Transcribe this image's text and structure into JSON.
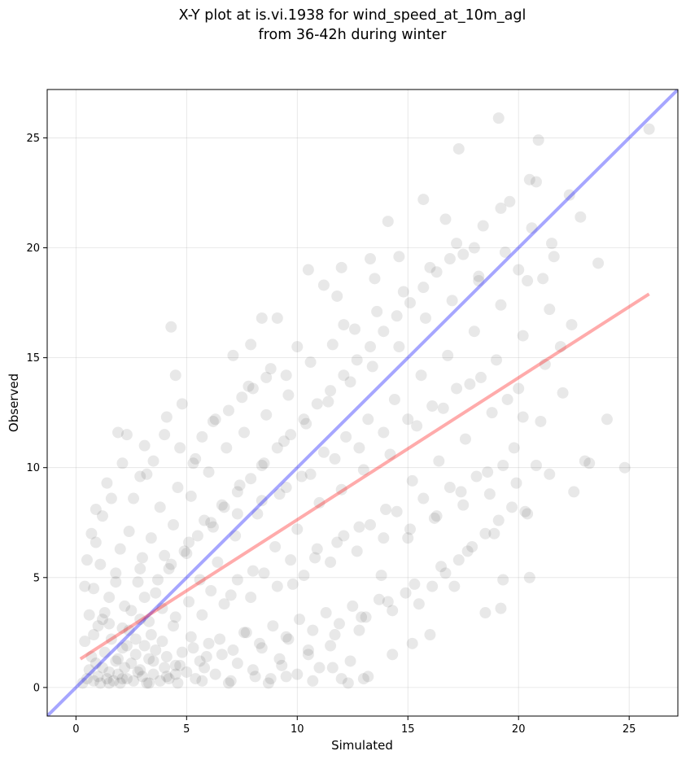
{
  "chart_data": {
    "type": "scatter",
    "title_lines": [
      "X-Y plot at is.vi.1938 for wind_speed_at_10m_agl",
      "from 36-42h during winter"
    ],
    "xlabel": "Simulated",
    "ylabel": "Observed",
    "xlim": [
      -1.3,
      27.2
    ],
    "ylim": [
      -1.3,
      27.2
    ],
    "xticks": [
      0,
      5,
      10,
      15,
      20,
      25
    ],
    "yticks": [
      0,
      5,
      10,
      15,
      20,
      25
    ],
    "grid": true,
    "point_color": "#000000",
    "point_opacity": 0.09,
    "reference_line": {
      "label": "1:1",
      "color": "#0000ff",
      "from": [
        -1.3,
        -1.3
      ],
      "to": [
        27.2,
        27.2
      ]
    },
    "fit_line": {
      "color": "#ff0000",
      "from": [
        0.2,
        1.3
      ],
      "to": [
        25.9,
        17.9
      ]
    },
    "points": [
      [
        0.3,
        0.2
      ],
      [
        0.5,
        0.4
      ],
      [
        0.6,
        0.8
      ],
      [
        0.8,
        0.3
      ],
      [
        0.9,
        1.1
      ],
      [
        1.0,
        0.5
      ],
      [
        1.1,
        0.2
      ],
      [
        1.2,
        0.9
      ],
      [
        1.3,
        1.6
      ],
      [
        1.4,
        0.4
      ],
      [
        1.5,
        0.7
      ],
      [
        1.6,
        2.2
      ],
      [
        1.7,
        0.3
      ],
      [
        1.8,
        1.2
      ],
      [
        1.9,
        0.6
      ],
      [
        2.0,
        0.2
      ],
      [
        2.1,
        1.8
      ],
      [
        2.2,
        0.9
      ],
      [
        2.3,
        0.4
      ],
      [
        2.4,
        2.6
      ],
      [
        2.5,
        1.1
      ],
      [
        2.6,
        0.3
      ],
      [
        2.7,
        1.5
      ],
      [
        2.8,
        0.7
      ],
      [
        2.9,
        3.1
      ],
      [
        3.0,
        0.5
      ],
      [
        3.1,
        1.9
      ],
      [
        3.2,
        0.2
      ],
      [
        3.3,
        1.3
      ],
      [
        3.4,
        2.4
      ],
      [
        3.5,
        0.6
      ],
      [
        3.6,
        1.7
      ],
      [
        3.8,
        0.3
      ],
      [
        3.9,
        2.1
      ],
      [
        4.0,
        0.9
      ],
      [
        4.1,
        1.4
      ],
      [
        4.2,
        0.4
      ],
      [
        4.4,
        2.8
      ],
      [
        4.5,
        1.0
      ],
      [
        4.6,
        0.2
      ],
      [
        4.8,
        1.6
      ],
      [
        5.0,
        0.7
      ],
      [
        5.2,
        2.3
      ],
      [
        5.4,
        0.4
      ],
      [
        5.6,
        1.2
      ],
      [
        5.8,
        0.9
      ],
      [
        6.0,
        2.0
      ],
      [
        6.3,
        0.6
      ],
      [
        6.6,
        1.5
      ],
      [
        7.0,
        0.3
      ],
      [
        7.3,
        1.1
      ],
      [
        7.6,
        2.5
      ],
      [
        8.0,
        0.8
      ],
      [
        8.4,
        1.8
      ],
      [
        8.8,
        0.4
      ],
      [
        9.2,
        1.3
      ],
      [
        9.6,
        2.2
      ],
      [
        10.0,
        0.6
      ],
      [
        10.5,
        1.5
      ],
      [
        11.0,
        0.9
      ],
      [
        11.5,
        1.9
      ],
      [
        12.0,
        0.4
      ],
      [
        12.4,
        1.2
      ],
      [
        12.8,
        2.6
      ],
      [
        13.2,
        0.5
      ],
      [
        1.0,
        2.8
      ],
      [
        1.3,
        3.4
      ],
      [
        0.8,
        4.5
      ],
      [
        1.1,
        5.6
      ],
      [
        0.9,
        6.6
      ],
      [
        1.2,
        7.8
      ],
      [
        1.5,
        4.1
      ],
      [
        1.8,
        5.2
      ],
      [
        2.0,
        6.3
      ],
      [
        2.2,
        3.7
      ],
      [
        2.4,
        7.1
      ],
      [
        2.6,
        8.6
      ],
      [
        2.8,
        4.8
      ],
      [
        3.0,
        5.9
      ],
      [
        3.2,
        9.7
      ],
      [
        3.4,
        6.8
      ],
      [
        3.6,
        4.3
      ],
      [
        3.8,
        8.2
      ],
      [
        4.0,
        11.5
      ],
      [
        4.2,
        5.4
      ],
      [
        4.4,
        7.4
      ],
      [
        4.6,
        9.1
      ],
      [
        4.8,
        12.9
      ],
      [
        5.0,
        6.1
      ],
      [
        5.2,
        8.7
      ],
      [
        5.4,
        10.4
      ],
      [
        5.6,
        4.9
      ],
      [
        5.8,
        7.6
      ],
      [
        6.0,
        9.8
      ],
      [
        6.2,
        12.1
      ],
      [
        6.4,
        5.7
      ],
      [
        6.6,
        8.3
      ],
      [
        6.8,
        10.9
      ],
      [
        7.0,
        4.2
      ],
      [
        7.2,
        6.9
      ],
      [
        7.4,
        9.2
      ],
      [
        7.6,
        11.6
      ],
      [
        7.8,
        13.7
      ],
      [
        8.0,
        5.3
      ],
      [
        8.2,
        7.9
      ],
      [
        8.4,
        10.1
      ],
      [
        8.6,
        12.4
      ],
      [
        8.8,
        14.5
      ],
      [
        9.0,
        6.4
      ],
      [
        9.2,
        8.8
      ],
      [
        9.4,
        11.2
      ],
      [
        9.6,
        13.3
      ],
      [
        9.8,
        4.7
      ],
      [
        10.0,
        7.2
      ],
      [
        10.2,
        9.6
      ],
      [
        10.4,
        12.0
      ],
      [
        10.6,
        14.8
      ],
      [
        10.8,
        5.9
      ],
      [
        11.0,
        8.4
      ],
      [
        11.2,
        10.7
      ],
      [
        11.4,
        13.0
      ],
      [
        11.6,
        15.6
      ],
      [
        11.8,
        6.6
      ],
      [
        12.0,
        9.0
      ],
      [
        12.2,
        11.4
      ],
      [
        12.4,
        13.9
      ],
      [
        12.6,
        16.3
      ],
      [
        12.8,
        7.3
      ],
      [
        13.0,
        9.9
      ],
      [
        13.2,
        12.2
      ],
      [
        13.4,
        14.6
      ],
      [
        13.6,
        17.1
      ],
      [
        13.8,
        5.1
      ],
      [
        14.0,
        8.1
      ],
      [
        14.2,
        10.6
      ],
      [
        14.4,
        13.1
      ],
      [
        14.6,
        15.5
      ],
      [
        14.8,
        18.0
      ],
      [
        15.0,
        6.8
      ],
      [
        15.2,
        9.4
      ],
      [
        15.4,
        11.9
      ],
      [
        15.6,
        14.2
      ],
      [
        15.8,
        16.8
      ],
      [
        16.0,
        19.1
      ],
      [
        16.2,
        7.7
      ],
      [
        16.4,
        10.3
      ],
      [
        16.6,
        12.7
      ],
      [
        16.8,
        15.1
      ],
      [
        17.0,
        17.6
      ],
      [
        17.2,
        20.2
      ],
      [
        17.4,
        8.9
      ],
      [
        17.6,
        11.3
      ],
      [
        17.8,
        13.8
      ],
      [
        18.0,
        16.2
      ],
      [
        18.2,
        18.7
      ],
      [
        18.4,
        21.0
      ],
      [
        18.6,
        9.8
      ],
      [
        18.8,
        12.5
      ],
      [
        19.0,
        14.9
      ],
      [
        19.2,
        17.4
      ],
      [
        19.4,
        19.8
      ],
      [
        19.6,
        22.1
      ],
      [
        19.8,
        10.9
      ],
      [
        20.0,
        13.6
      ],
      [
        20.2,
        16.0
      ],
      [
        20.4,
        18.5
      ],
      [
        20.6,
        20.9
      ],
      [
        20.8,
        23.0
      ],
      [
        21.0,
        12.1
      ],
      [
        21.2,
        14.7
      ],
      [
        21.4,
        17.2
      ],
      [
        21.6,
        19.6
      ],
      [
        22.0,
        13.4
      ],
      [
        22.4,
        16.5
      ],
      [
        22.8,
        21.4
      ],
      [
        23.2,
        10.2
      ],
      [
        23.6,
        19.3
      ],
      [
        24.0,
        12.2
      ],
      [
        24.8,
        10.0
      ],
      [
        25.9,
        25.4
      ],
      [
        19.1,
        25.9
      ],
      [
        20.9,
        24.9
      ],
      [
        17.3,
        24.5
      ],
      [
        20.5,
        23.1
      ],
      [
        15.7,
        22.2
      ],
      [
        14.1,
        21.2
      ],
      [
        16.7,
        21.3
      ],
      [
        22.3,
        22.4
      ],
      [
        19.2,
        21.8
      ],
      [
        18.0,
        20.0
      ],
      [
        21.5,
        20.2
      ],
      [
        19.3,
        4.9
      ],
      [
        19.2,
        3.6
      ],
      [
        20.5,
        5.0
      ],
      [
        18.5,
        3.4
      ],
      [
        17.1,
        4.6
      ],
      [
        16.0,
        2.4
      ],
      [
        15.2,
        2.0
      ],
      [
        14.3,
        1.5
      ],
      [
        13.0,
        0.4
      ],
      [
        12.3,
        0.2
      ],
      [
        11.6,
        0.9
      ],
      [
        10.7,
        0.3
      ],
      [
        9.5,
        0.5
      ],
      [
        8.7,
        0.2
      ],
      [
        4.3,
        16.4
      ],
      [
        4.5,
        14.2
      ],
      [
        3.1,
        11.0
      ],
      [
        2.3,
        11.5
      ],
      [
        1.9,
        11.6
      ],
      [
        6.3,
        12.2
      ],
      [
        7.1,
        15.1
      ],
      [
        7.9,
        15.6
      ],
      [
        8.4,
        16.8
      ],
      [
        9.1,
        16.8
      ],
      [
        10.5,
        19.0
      ],
      [
        11.2,
        18.3
      ],
      [
        11.8,
        17.8
      ],
      [
        12.0,
        19.1
      ],
      [
        13.3,
        19.5
      ],
      [
        14.6,
        19.6
      ],
      [
        13.5,
        18.6
      ],
      [
        12.1,
        16.5
      ],
      [
        10.0,
        15.5
      ],
      [
        9.5,
        14.2
      ],
      [
        8.6,
        14.1
      ],
      [
        8.0,
        13.6
      ],
      [
        7.5,
        13.2
      ],
      [
        6.9,
        12.6
      ],
      [
        5.7,
        11.4
      ],
      [
        5.3,
        10.2
      ],
      [
        4.7,
        10.9
      ],
      [
        4.1,
        12.3
      ],
      [
        3.5,
        10.3
      ],
      [
        2.9,
        9.6
      ],
      [
        2.1,
        10.2
      ],
      [
        1.6,
        8.6
      ],
      [
        1.4,
        9.3
      ],
      [
        0.9,
        8.1
      ],
      [
        0.7,
        7.0
      ],
      [
        0.5,
        5.8
      ],
      [
        0.4,
        4.6
      ],
      [
        0.6,
        3.3
      ],
      [
        0.4,
        2.1
      ],
      [
        0.7,
        1.4
      ],
      [
        1.5,
        2.9
      ],
      [
        2.1,
        2.7
      ],
      [
        2.7,
        2.2
      ],
      [
        3.3,
        3.0
      ],
      [
        3.9,
        3.6
      ],
      [
        4.5,
        3.2
      ],
      [
        5.1,
        3.9
      ],
      [
        5.7,
        3.3
      ],
      [
        6.1,
        4.4
      ],
      [
        6.7,
        3.8
      ],
      [
        7.3,
        4.9
      ],
      [
        7.9,
        4.1
      ],
      [
        8.5,
        5.2
      ],
      [
        9.1,
        4.6
      ],
      [
        9.7,
        5.8
      ],
      [
        10.3,
        5.1
      ],
      [
        10.9,
        6.3
      ],
      [
        11.5,
        5.7
      ],
      [
        12.1,
        6.9
      ],
      [
        12.7,
        6.2
      ],
      [
        13.3,
        7.4
      ],
      [
        13.9,
        6.8
      ],
      [
        14.5,
        8.0
      ],
      [
        15.1,
        7.2
      ],
      [
        15.7,
        8.6
      ],
      [
        16.3,
        7.8
      ],
      [
        16.9,
        9.1
      ],
      [
        17.5,
        8.3
      ],
      [
        18.1,
        9.6
      ],
      [
        18.7,
        8.8
      ],
      [
        19.3,
        10.1
      ],
      [
        19.9,
        9.3
      ],
      [
        20.3,
        8.0
      ],
      [
        20.4,
        7.9
      ],
      [
        18.9,
        7.0
      ],
      [
        17.7,
        6.2
      ],
      [
        16.5,
        5.5
      ],
      [
        15.3,
        4.7
      ],
      [
        14.1,
        3.9
      ],
      [
        12.9,
        3.2
      ],
      [
        11.7,
        2.4
      ],
      [
        10.5,
        1.7
      ],
      [
        9.3,
        1.0
      ],
      [
        8.1,
        0.5
      ],
      [
        6.9,
        0.2
      ],
      [
        5.7,
        0.3
      ],
      [
        4.5,
        0.6
      ],
      [
        3.3,
        0.2
      ],
      [
        2.1,
        0.4
      ],
      [
        1.5,
        0.2
      ],
      [
        2.5,
        3.5
      ],
      [
        3.1,
        4.1
      ],
      [
        3.7,
        4.9
      ],
      [
        4.3,
        5.6
      ],
      [
        4.9,
        6.2
      ],
      [
        5.5,
        6.9
      ],
      [
        6.1,
        7.5
      ],
      [
        6.7,
        8.2
      ],
      [
        7.3,
        8.9
      ],
      [
        7.9,
        9.5
      ],
      [
        8.5,
        10.2
      ],
      [
        9.1,
        10.9
      ],
      [
        9.7,
        11.5
      ],
      [
        10.3,
        12.2
      ],
      [
        10.9,
        12.9
      ],
      [
        11.5,
        13.5
      ],
      [
        12.1,
        14.2
      ],
      [
        12.7,
        14.9
      ],
      [
        13.3,
        15.5
      ],
      [
        13.9,
        16.2
      ],
      [
        14.5,
        16.9
      ],
      [
        15.1,
        17.5
      ],
      [
        15.7,
        18.2
      ],
      [
        16.3,
        18.9
      ],
      [
        16.9,
        19.5
      ],
      [
        17.5,
        19.7
      ],
      [
        18.2,
        18.5
      ],
      [
        20.0,
        19.0
      ],
      [
        21.1,
        18.6
      ],
      [
        21.9,
        15.5
      ],
      [
        22.5,
        8.9
      ],
      [
        23.0,
        10.3
      ],
      [
        21.4,
        9.7
      ],
      [
        20.8,
        10.1
      ],
      [
        20.2,
        12.3
      ],
      [
        19.5,
        13.1
      ],
      [
        18.3,
        14.1
      ],
      [
        17.2,
        13.6
      ],
      [
        16.1,
        12.8
      ],
      [
        15.0,
        12.2
      ],
      [
        13.9,
        11.6
      ],
      [
        12.8,
        10.9
      ],
      [
        11.7,
        10.4
      ],
      [
        10.6,
        9.7
      ],
      [
        9.5,
        9.1
      ],
      [
        8.4,
        8.5
      ],
      [
        7.3,
        7.9
      ],
      [
        6.2,
        7.3
      ],
      [
        5.1,
        6.6
      ],
      [
        4.0,
        6.0
      ],
      [
        2.9,
        5.4
      ],
      [
        1.8,
        4.8
      ],
      [
        1.2,
        3.1
      ],
      [
        0.8,
        2.4
      ],
      [
        1.9,
        1.3
      ],
      [
        2.3,
        1.9
      ],
      [
        2.9,
        0.8
      ],
      [
        3.5,
        1.2
      ],
      [
        4.1,
        0.5
      ],
      [
        4.7,
        1.0
      ],
      [
        5.3,
        1.8
      ],
      [
        5.9,
        1.4
      ],
      [
        6.5,
        2.2
      ],
      [
        7.1,
        1.7
      ],
      [
        7.7,
        2.5
      ],
      [
        8.3,
        2.0
      ],
      [
        8.9,
        2.8
      ],
      [
        9.5,
        2.3
      ],
      [
        10.1,
        3.1
      ],
      [
        10.7,
        2.6
      ],
      [
        11.3,
        3.4
      ],
      [
        11.9,
        2.9
      ],
      [
        12.5,
        3.7
      ],
      [
        13.1,
        3.2
      ],
      [
        13.7,
        4.0
      ],
      [
        14.3,
        3.5
      ],
      [
        14.9,
        4.3
      ],
      [
        15.5,
        3.8
      ],
      [
        16.1,
        4.6
      ],
      [
        16.7,
        5.2
      ],
      [
        17.3,
        5.8
      ],
      [
        17.9,
        6.4
      ],
      [
        18.5,
        7.0
      ],
      [
        19.1,
        7.6
      ],
      [
        19.7,
        8.2
      ]
    ]
  }
}
